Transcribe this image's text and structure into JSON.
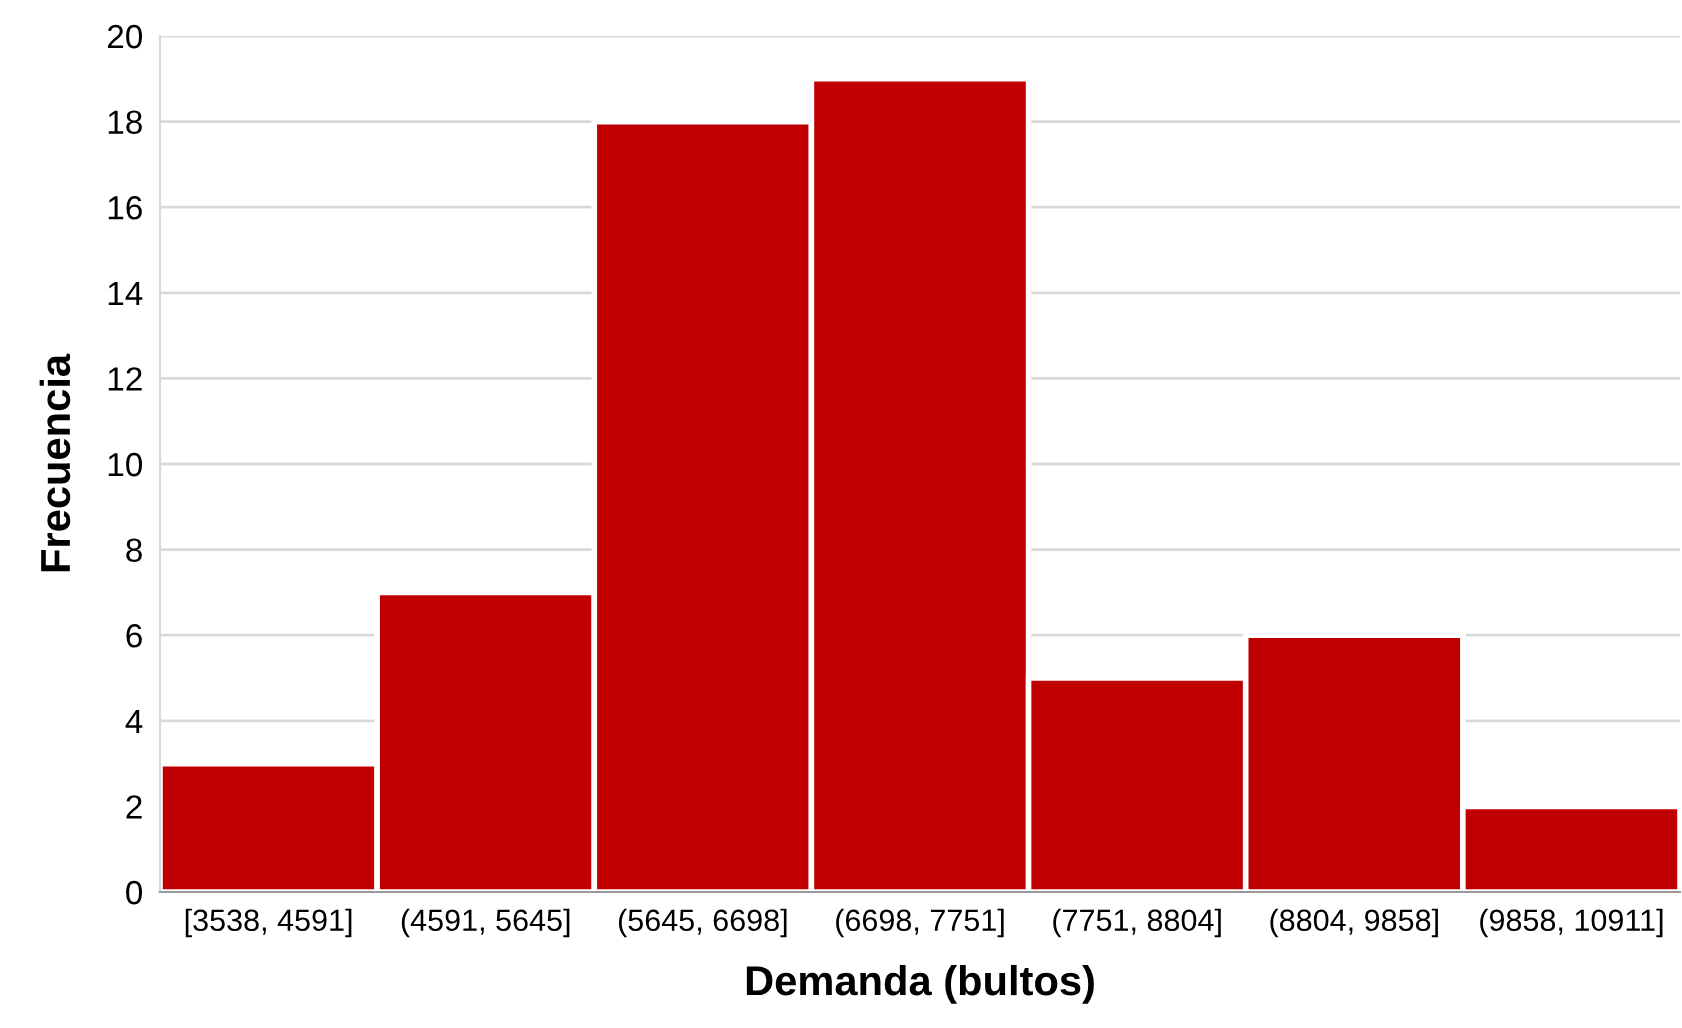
{
  "chart_data": {
    "type": "bar",
    "xlabel": "Demanda (bultos)",
    "ylabel": "Frecuencia",
    "categories": [
      "[3538, 4591]",
      "(4591, 5645]",
      "(5645, 6698]",
      "(6698, 7751]",
      "(7751, 8804]",
      "(8804, 9858]",
      "(9858, 10911]"
    ],
    "values": [
      3,
      7,
      18,
      19,
      5,
      6,
      2
    ],
    "color": "#c00000",
    "ylim": [
      0,
      20
    ],
    "yticks": [
      0,
      2,
      4,
      6,
      8,
      10,
      12,
      14,
      16,
      18,
      20
    ],
    "grid": "y",
    "legend": false
  }
}
